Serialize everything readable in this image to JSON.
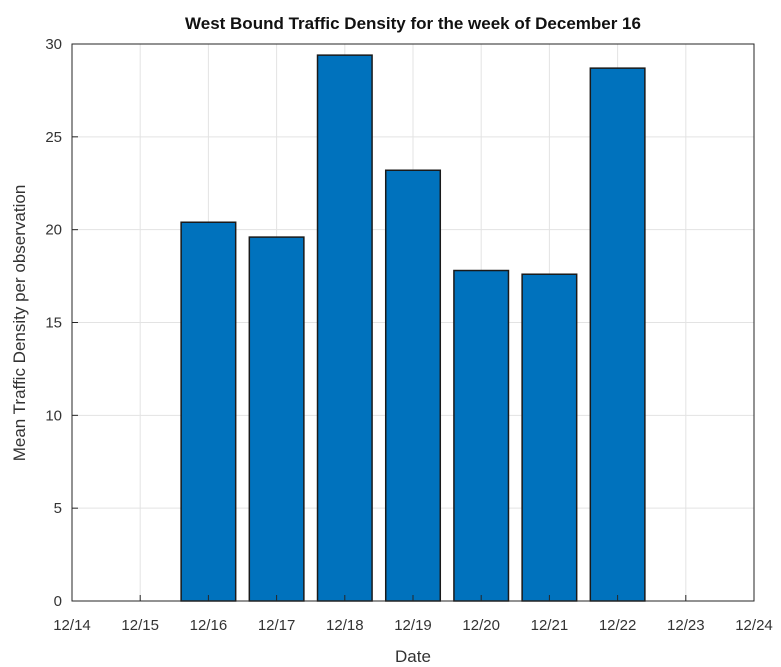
{
  "chart_data": {
    "type": "bar",
    "title": "West Bound Traffic Density for the week of December 16",
    "xlabel": "Date",
    "ylabel": "Mean Traffic Density per observation",
    "x_ticks": [
      "12/14",
      "12/15",
      "12/16",
      "12/17",
      "12/18",
      "12/19",
      "12/20",
      "12/21",
      "12/22",
      "12/23",
      "12/24"
    ],
    "categories": [
      "12/16",
      "12/17",
      "12/18",
      "12/19",
      "12/20",
      "12/21",
      "12/22"
    ],
    "values": [
      20.4,
      19.6,
      29.4,
      23.2,
      17.8,
      17.6,
      28.7
    ],
    "y_ticks": [
      "0",
      "5",
      "10",
      "15",
      "20",
      "25",
      "30"
    ],
    "ylim": [
      0,
      30
    ],
    "grid": true,
    "bar_color": "#0072BD"
  }
}
